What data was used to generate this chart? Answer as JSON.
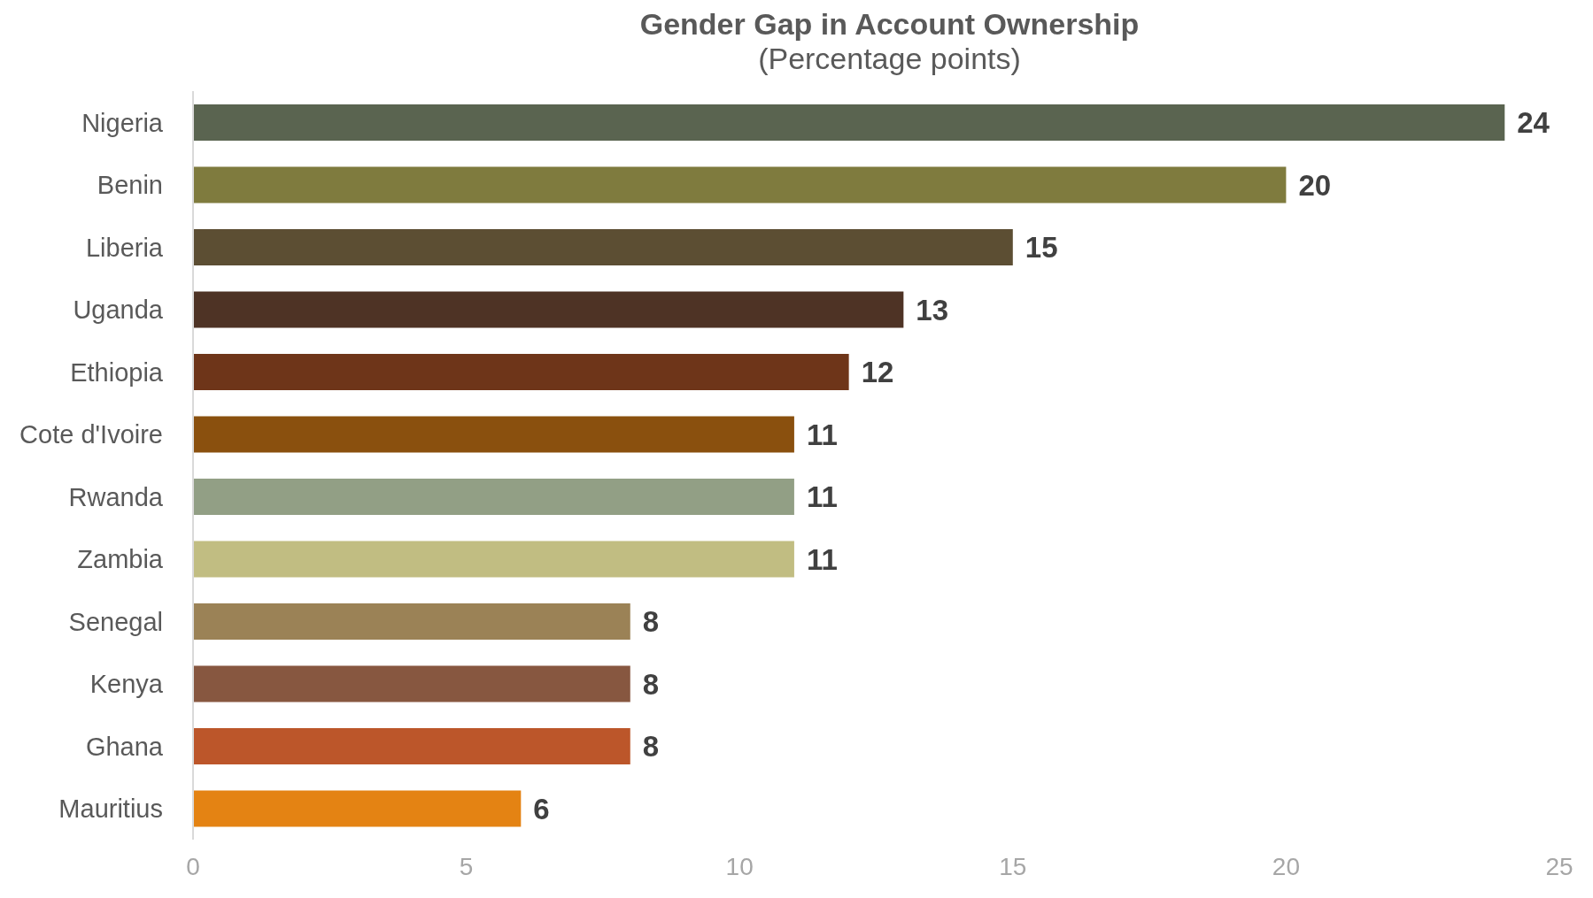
{
  "chart_data": {
    "type": "bar",
    "orientation": "horizontal",
    "title": "Gender Gap in Account Ownership",
    "subtitle": "(Percentage points)",
    "categories": [
      "Nigeria",
      "Benin",
      "Liberia",
      "Uganda",
      "Ethiopia",
      "Cote d'Ivoire",
      "Rwanda",
      "Zambia",
      "Senegal",
      "Kenya",
      "Ghana",
      "Mauritius"
    ],
    "values": [
      24,
      20,
      15,
      13,
      12,
      11,
      11,
      11,
      8,
      8,
      8,
      6
    ],
    "colors": [
      "#5a6450",
      "#7f7b3e",
      "#5c4e33",
      "#4e3325",
      "#6e3519",
      "#8a500e",
      "#929f85",
      "#c1bd82",
      "#9b8256",
      "#875740",
      "#bc562a",
      "#e48313"
    ],
    "xlim": [
      0,
      25
    ],
    "xticks": [
      0,
      5,
      10,
      15,
      20,
      25
    ],
    "grid": false,
    "data_labels": true
  }
}
